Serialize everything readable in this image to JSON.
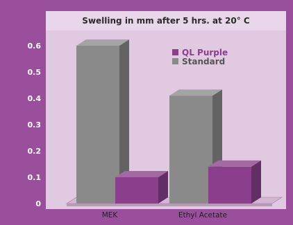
{
  "chart_data": {
    "type": "bar",
    "title": "Swelling in mm after 5 hrs. at 20° C",
    "categories": [
      "MEK",
      "Ethyl Acetate"
    ],
    "series": [
      {
        "name": "QL Purple",
        "values": [
          0.1,
          0.14
        ],
        "color": "#8a3e8c"
      },
      {
        "name": "Standard",
        "values": [
          0.6,
          0.41
        ],
        "color": "#8a8a8a"
      }
    ],
    "ylim": [
      0,
      0.6
    ],
    "yticks": [
      "0",
      "0.1",
      "0.2",
      "0.3",
      "0.4",
      "0.5",
      "0.6"
    ],
    "legend_position": "top-right",
    "grid": false,
    "colors": {
      "page_background": "#9a4f9c",
      "plot_background": "#e2c9e2",
      "title_strip": "#ead6ea"
    }
  }
}
